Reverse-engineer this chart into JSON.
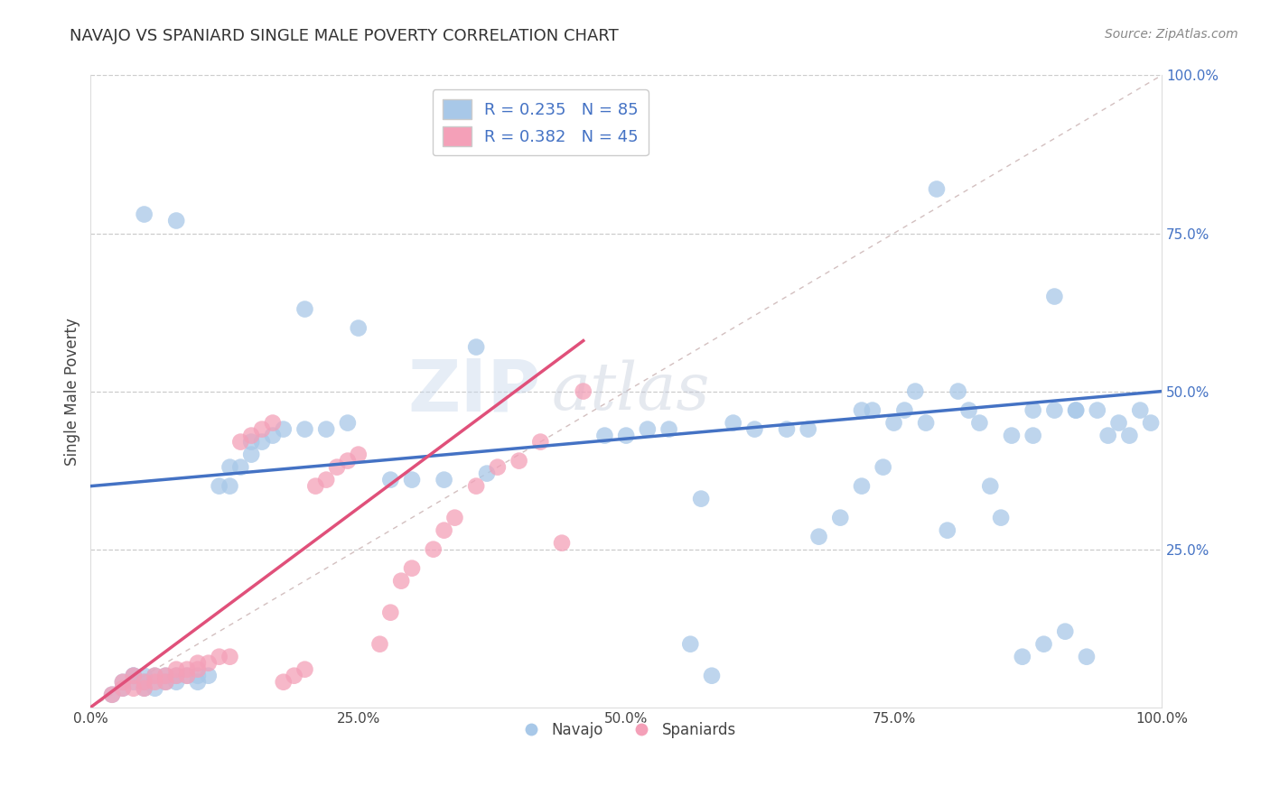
{
  "title": "NAVAJO VS SPANIARD SINGLE MALE POVERTY CORRELATION CHART",
  "source_text": "Source: ZipAtlas.com",
  "ylabel": "Single Male Poverty",
  "xlim": [
    0.0,
    1.0
  ],
  "ylim": [
    0.0,
    1.0
  ],
  "xtick_labels": [
    "0.0%",
    "25.0%",
    "50.0%",
    "75.0%",
    "100.0%"
  ],
  "xtick_vals": [
    0.0,
    0.25,
    0.5,
    0.75,
    1.0
  ],
  "right_ytick_labels": [
    "100.0%",
    "75.0%",
    "50.0%",
    "25.0%",
    ""
  ],
  "right_ytick_vals": [
    1.0,
    0.75,
    0.5,
    0.25,
    0.0
  ],
  "navajo_R": 0.235,
  "navajo_N": 85,
  "spaniard_R": 0.382,
  "spaniard_N": 45,
  "navajo_color": "#a8c8e8",
  "spaniard_color": "#f4a0b8",
  "navajo_line_color": "#4472c4",
  "spaniard_line_color": "#e0507a",
  "diagonal_color": "#c8a0a0",
  "watermark_zip": "ZIP",
  "watermark_atlas": "atlas",
  "legend_text_color": "#4472c4",
  "navajo_x": [
    0.05,
    0.08,
    0.2,
    0.25,
    0.36,
    0.02,
    0.03,
    0.03,
    0.04,
    0.04,
    0.04,
    0.05,
    0.05,
    0.05,
    0.06,
    0.06,
    0.07,
    0.07,
    0.08,
    0.08,
    0.09,
    0.1,
    0.1,
    0.11,
    0.12,
    0.13,
    0.13,
    0.14,
    0.15,
    0.15,
    0.16,
    0.17,
    0.18,
    0.2,
    0.22,
    0.24,
    0.28,
    0.3,
    0.33,
    0.37,
    0.48,
    0.57,
    0.6,
    0.62,
    0.65,
    0.67,
    0.68,
    0.7,
    0.72,
    0.74,
    0.75,
    0.77,
    0.78,
    0.79,
    0.8,
    0.81,
    0.82,
    0.83,
    0.84,
    0.85,
    0.86,
    0.87,
    0.88,
    0.89,
    0.9,
    0.91,
    0.92,
    0.93,
    0.94,
    0.95,
    0.96,
    0.97,
    0.98,
    0.99,
    0.73,
    0.76,
    0.5,
    0.52,
    0.54,
    0.56,
    0.58,
    0.72,
    0.88,
    0.9,
    0.92
  ],
  "navajo_y": [
    0.78,
    0.77,
    0.63,
    0.6,
    0.57,
    0.02,
    0.03,
    0.04,
    0.04,
    0.05,
    0.05,
    0.03,
    0.04,
    0.05,
    0.03,
    0.05,
    0.04,
    0.05,
    0.04,
    0.05,
    0.05,
    0.04,
    0.05,
    0.05,
    0.35,
    0.35,
    0.38,
    0.38,
    0.4,
    0.42,
    0.42,
    0.43,
    0.44,
    0.44,
    0.44,
    0.45,
    0.36,
    0.36,
    0.36,
    0.37,
    0.43,
    0.33,
    0.45,
    0.44,
    0.44,
    0.44,
    0.27,
    0.3,
    0.35,
    0.38,
    0.45,
    0.5,
    0.45,
    0.82,
    0.28,
    0.5,
    0.47,
    0.45,
    0.35,
    0.3,
    0.43,
    0.08,
    0.43,
    0.1,
    0.65,
    0.12,
    0.47,
    0.08,
    0.47,
    0.43,
    0.45,
    0.43,
    0.47,
    0.45,
    0.47,
    0.47,
    0.43,
    0.44,
    0.44,
    0.1,
    0.05,
    0.47,
    0.47,
    0.47,
    0.47
  ],
  "spaniard_x": [
    0.02,
    0.03,
    0.03,
    0.04,
    0.04,
    0.05,
    0.05,
    0.06,
    0.06,
    0.07,
    0.07,
    0.08,
    0.08,
    0.09,
    0.09,
    0.1,
    0.1,
    0.11,
    0.12,
    0.13,
    0.14,
    0.15,
    0.16,
    0.17,
    0.18,
    0.19,
    0.2,
    0.21,
    0.22,
    0.23,
    0.24,
    0.25,
    0.27,
    0.28,
    0.29,
    0.3,
    0.32,
    0.33,
    0.34,
    0.36,
    0.38,
    0.4,
    0.42,
    0.44,
    0.46
  ],
  "spaniard_y": [
    0.02,
    0.03,
    0.04,
    0.03,
    0.05,
    0.03,
    0.04,
    0.04,
    0.05,
    0.04,
    0.05,
    0.05,
    0.06,
    0.05,
    0.06,
    0.06,
    0.07,
    0.07,
    0.08,
    0.08,
    0.42,
    0.43,
    0.44,
    0.45,
    0.04,
    0.05,
    0.06,
    0.35,
    0.36,
    0.38,
    0.39,
    0.4,
    0.1,
    0.15,
    0.2,
    0.22,
    0.25,
    0.28,
    0.3,
    0.35,
    0.38,
    0.39,
    0.42,
    0.26,
    0.5
  ],
  "navajo_line_x0": 0.0,
  "navajo_line_x1": 1.0,
  "navajo_line_y0": 0.35,
  "navajo_line_y1": 0.5,
  "spaniard_line_x0": 0.0,
  "spaniard_line_x1": 0.46,
  "spaniard_line_y0": 0.0,
  "spaniard_line_y1": 0.58
}
